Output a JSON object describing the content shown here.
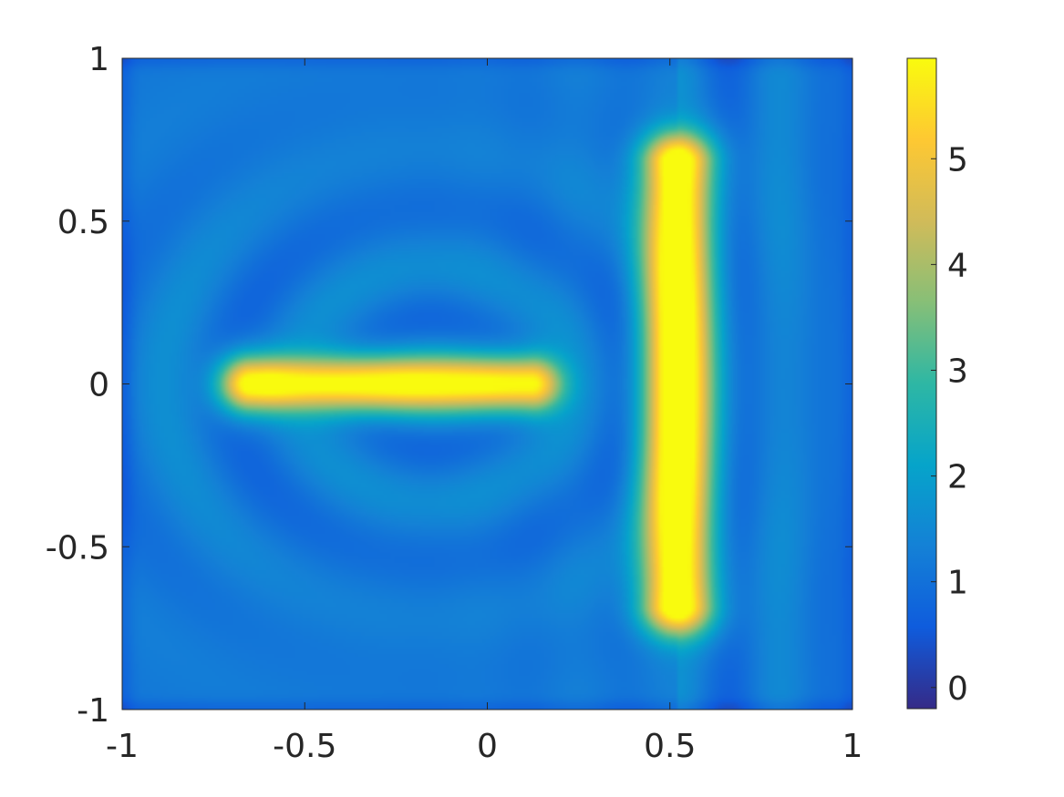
{
  "chart_data": {
    "type": "heatmap",
    "title": "",
    "xlabel": "",
    "ylabel": "",
    "xlim": [
      -1,
      1
    ],
    "ylim": [
      -1,
      1
    ],
    "x_ticks": [
      -1,
      -0.5,
      0,
      0.5,
      1
    ],
    "x_tick_labels": [
      "-1",
      "-0.5",
      "0",
      "0.5",
      "1"
    ],
    "y_ticks": [
      1,
      0.5,
      0,
      -0.5,
      -1
    ],
    "y_tick_labels": [
      "1",
      "0.5",
      "0",
      "-0.5",
      "-1"
    ],
    "colorbar": {
      "colormap": "parula",
      "range": [
        -0.2,
        5.95
      ],
      "ticks": [
        0,
        1,
        2,
        3,
        4,
        5
      ],
      "tick_labels": [
        "0",
        "1",
        "2",
        "3",
        "4",
        "5"
      ],
      "placement": "right"
    },
    "features": [
      {
        "shape": "horizontal-bar",
        "x_range": [
          -0.65,
          0.12
        ],
        "y": 0,
        "peak": 5.2
      },
      {
        "shape": "vertical-bar",
        "x": 0.52,
        "y_range": [
          -0.68,
          0.68
        ],
        "peak": 5.9
      }
    ],
    "background_level": 1.2
  }
}
